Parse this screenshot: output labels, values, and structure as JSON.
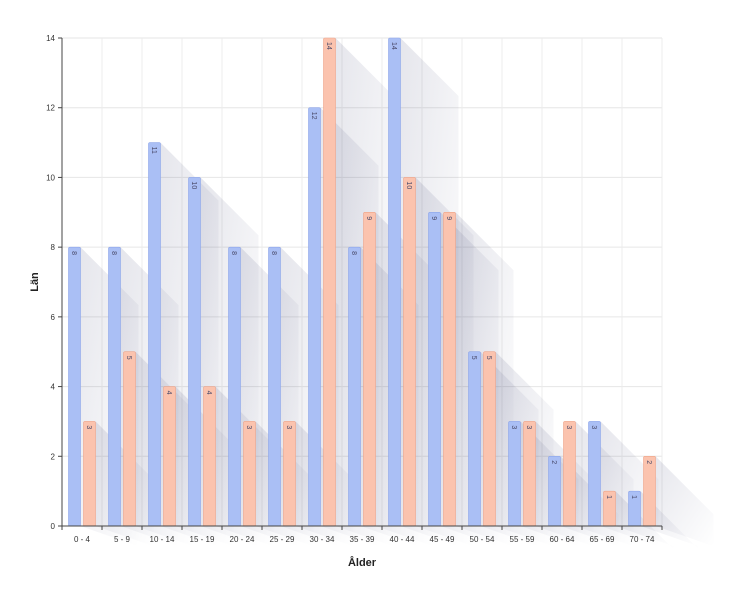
{
  "chart_data": {
    "type": "bar",
    "title": "",
    "xlabel": "Ålder",
    "ylabel": "Län",
    "ylim": [
      0,
      14
    ],
    "yticks": [
      0,
      2,
      4,
      6,
      8,
      10,
      12,
      14
    ],
    "grid": true,
    "legend": "none",
    "categories": [
      "0 - 4",
      "5 - 9",
      "10 - 14",
      "15 - 19",
      "20 - 24",
      "25 - 29",
      "30 - 34",
      "35 - 39",
      "40 - 44",
      "45 - 49",
      "50 - 54",
      "55 - 59",
      "60 - 64",
      "65 - 69",
      "70 - 74"
    ],
    "series": [
      {
        "color": "#aabff5",
        "border": "#8ea6ea",
        "values": [
          8,
          8,
          11,
          10,
          8,
          8,
          12,
          8,
          14,
          9,
          5,
          3,
          2,
          3,
          1
        ]
      },
      {
        "color": "#fbc3ae",
        "border": "#eea489",
        "values": [
          3,
          5,
          4,
          4,
          3,
          3,
          14,
          9,
          10,
          9,
          5,
          3,
          3,
          1,
          2
        ]
      }
    ]
  }
}
